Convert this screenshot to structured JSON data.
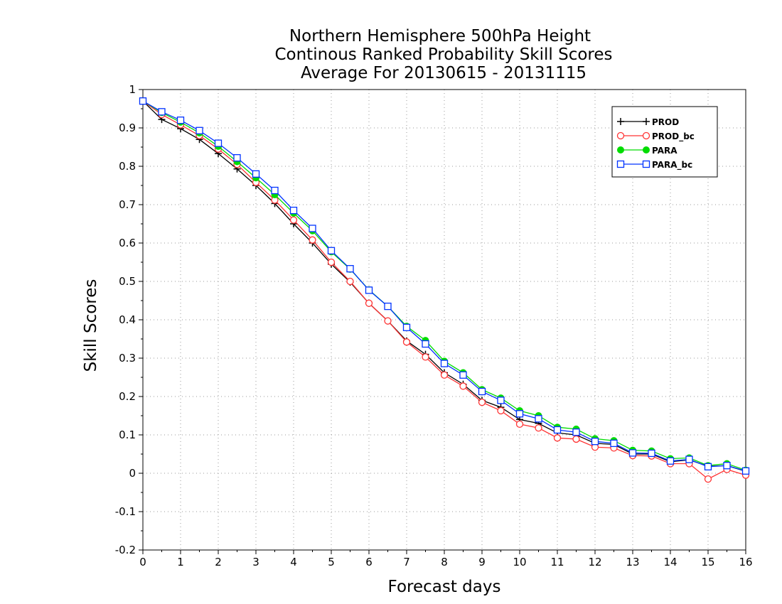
{
  "chart_data": {
    "type": "line",
    "title": [
      "Northern Hemisphere 500hPa Height",
      "Continous Ranked Probability Skill Scores",
      "Average For 20130615 - 20131115"
    ],
    "xlabel": "Forecast days",
    "ylabel": "Skill Scores",
    "xlim": [
      0,
      16
    ],
    "ylim": [
      -0.2,
      1
    ],
    "xticks": [
      0,
      1,
      2,
      3,
      4,
      5,
      6,
      7,
      8,
      9,
      10,
      11,
      12,
      13,
      14,
      15,
      16
    ],
    "yticks": [
      -0.2,
      -0.1,
      0,
      0.1,
      0.2,
      0.3,
      0.4,
      0.5,
      0.6,
      0.7,
      0.8,
      0.9,
      1
    ],
    "ytick_labels": [
      "-0.2",
      "-0.1",
      "0",
      "0.1",
      "0.2",
      "0.3",
      "0.4",
      "0.5",
      "0.6",
      "0.7",
      "0.8",
      "0.9",
      "1"
    ],
    "grid": true,
    "legend_position": "top-right",
    "x": [
      0,
      0.5,
      1,
      1.5,
      2,
      2.5,
      3,
      3.5,
      4,
      4.5,
      5,
      5.5,
      6,
      6.5,
      7,
      7.5,
      8,
      8.5,
      9,
      9.5,
      10,
      10.5,
      11,
      11.5,
      12,
      12.5,
      13,
      13.5,
      14,
      14.5,
      15,
      15.5,
      16
    ],
    "series": [
      {
        "name": "PROD",
        "color": "#000000",
        "marker": "plus",
        "values": [
          0.97,
          0.922,
          0.898,
          0.87,
          0.833,
          0.793,
          0.75,
          0.703,
          0.65,
          0.6,
          0.545,
          0.498,
          0.443,
          0.397,
          0.345,
          0.31,
          0.262,
          0.232,
          0.19,
          0.172,
          0.14,
          0.13,
          0.105,
          0.1,
          0.078,
          0.075,
          0.05,
          0.05,
          0.03,
          0.035,
          0.018,
          0.02,
          0.005
        ]
      },
      {
        "name": "PROD_bc",
        "color": "#ff3333",
        "marker": "circle",
        "values": [
          0.97,
          0.935,
          0.908,
          0.88,
          0.845,
          0.805,
          0.758,
          0.712,
          0.66,
          0.608,
          0.55,
          0.5,
          0.443,
          0.397,
          0.342,
          0.303,
          0.256,
          0.227,
          0.185,
          0.163,
          0.128,
          0.118,
          0.092,
          0.089,
          0.068,
          0.066,
          0.046,
          0.045,
          0.025,
          0.025,
          -0.015,
          0.01,
          -0.005
        ]
      },
      {
        "name": "PARA",
        "color": "#00dc00",
        "marker": "filled-circle",
        "values": [
          0.97,
          0.94,
          0.915,
          0.887,
          0.852,
          0.812,
          0.77,
          0.726,
          0.678,
          0.632,
          0.577,
          0.532,
          0.478,
          0.435,
          0.383,
          0.346,
          0.292,
          0.262,
          0.218,
          0.196,
          0.163,
          0.15,
          0.12,
          0.115,
          0.09,
          0.085,
          0.06,
          0.058,
          0.038,
          0.04,
          0.02,
          0.025,
          0.008
        ]
      },
      {
        "name": "PARA_bc",
        "color": "#0033ff",
        "marker": "square",
        "values": [
          0.97,
          0.942,
          0.92,
          0.893,
          0.86,
          0.822,
          0.78,
          0.737,
          0.685,
          0.638,
          0.58,
          0.533,
          0.477,
          0.435,
          0.38,
          0.337,
          0.286,
          0.256,
          0.213,
          0.19,
          0.155,
          0.142,
          0.113,
          0.107,
          0.083,
          0.078,
          0.053,
          0.052,
          0.032,
          0.036,
          0.017,
          0.02,
          0.006
        ]
      }
    ]
  }
}
